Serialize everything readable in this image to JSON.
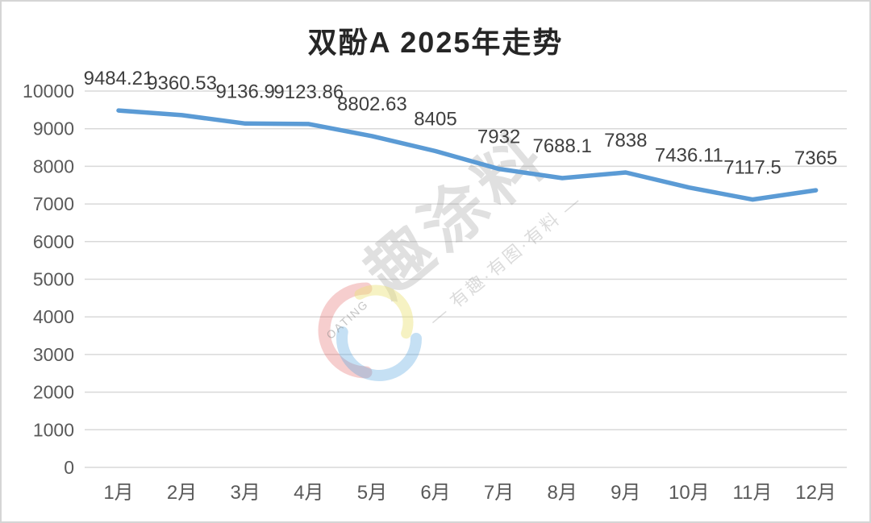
{
  "title": "双酚A 2025年走势",
  "chart_data": {
    "type": "line",
    "title": "双酚A 2025年走势",
    "xlabel": "",
    "ylabel": "",
    "categories": [
      "1月",
      "2月",
      "3月",
      "4月",
      "5月",
      "6月",
      "7月",
      "8月",
      "9月",
      "10月",
      "11月",
      "12月"
    ],
    "values": [
      9484.21,
      9360.53,
      9136.9,
      9123.86,
      8802.63,
      8405,
      7932,
      7688.1,
      7838,
      7436.11,
      7117.5,
      7365
    ],
    "point_labels": [
      "9484.21",
      "9360.53",
      "9136.9",
      "9123.86",
      "8802.63",
      "8405",
      "7932",
      "7688.1",
      "7838",
      "7436.11",
      "7117.5",
      "7365"
    ],
    "ylim": [
      0,
      10000
    ],
    "ytick_interval": 1000,
    "yticks": [
      "0",
      "1000",
      "2000",
      "3000",
      "4000",
      "5000",
      "6000",
      "7000",
      "8000",
      "9000",
      "10000"
    ],
    "grid": true,
    "legend_position": "none",
    "line_color": "#5b9bd5",
    "gridline_color": "#d9d9d9",
    "axis_label_color": "#595959",
    "point_label_color": "#3f3f3f"
  },
  "watermark": {
    "brand_text": "趣涂料",
    "slogan_text": "— 有趣·有图·有料 —",
    "logo_arc_text": "OATING",
    "text_color": "#8a8a8a",
    "logo_red": "#e25d5d",
    "logo_yellow": "#ece27a",
    "logo_blue": "#5aa7e0"
  }
}
